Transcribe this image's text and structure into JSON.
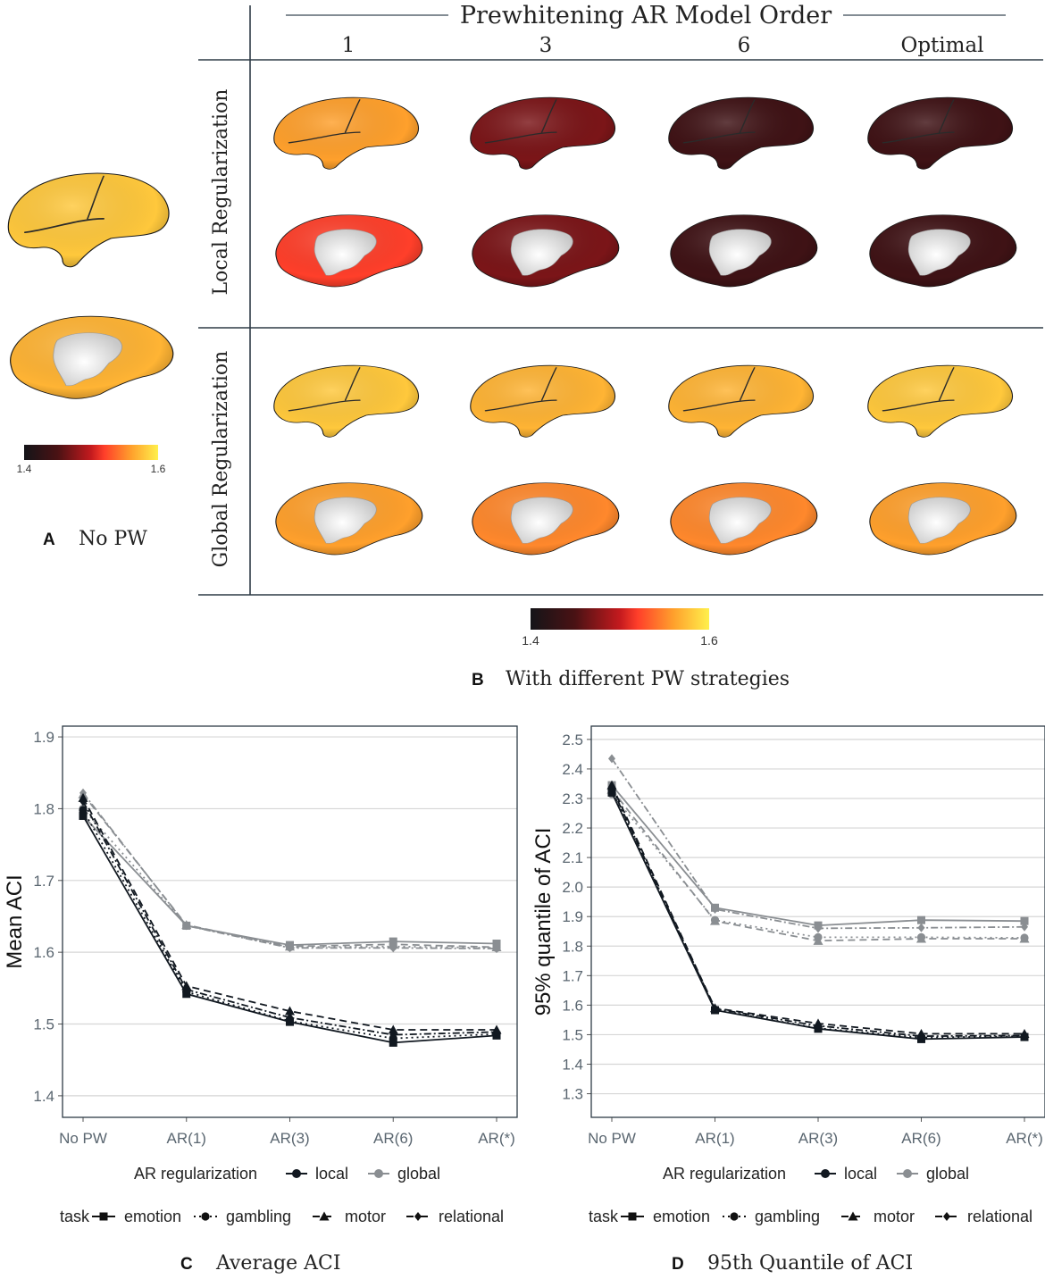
{
  "panel_a": {
    "letter": "A",
    "caption": "No PW",
    "colorbar": {
      "min_label": "1.4",
      "max_label": "1.6",
      "min": 1.4,
      "max": 1.6,
      "colors": [
        "#111111",
        "#5a1010",
        "#c21b1b",
        "#ff3a2a",
        "#ff9a2a",
        "#ffef4a"
      ]
    },
    "lateral_value": 1.58,
    "medial_value": 1.57
  },
  "panel_b": {
    "letter": "B",
    "caption": "With different PW strategies",
    "header_title": "Prewhitening AR Model Order",
    "columns": [
      "1",
      "3",
      "6",
      "Optimal"
    ],
    "rows": [
      "Local Regularization",
      "Global Regularization"
    ],
    "colorbar": {
      "min_label": "1.4",
      "max_label": "1.6",
      "min": 1.4,
      "max": 1.6
    },
    "brain_values": {
      "local": {
        "lateral": [
          1.56,
          1.47,
          1.44,
          1.44
        ],
        "medial": [
          1.52,
          1.47,
          1.44,
          1.44
        ]
      },
      "global": {
        "lateral": [
          1.58,
          1.57,
          1.57,
          1.58
        ],
        "medial": [
          1.56,
          1.55,
          1.55,
          1.56
        ]
      }
    }
  },
  "chart_data": [
    {
      "id": "C",
      "letter": "C",
      "caption": "Average ACI",
      "type": "line",
      "title": "",
      "xlabel": "",
      "ylabel": "Mean ACI",
      "categories": [
        "No PW",
        "AR(1)",
        "AR(3)",
        "AR(6)",
        "AR(*)"
      ],
      "ylim": [
        1.37,
        1.915
      ],
      "yticks": [
        1.4,
        1.5,
        1.6,
        1.7,
        1.8,
        1.9
      ],
      "ytick_labels": [
        "1.4",
        "1.5",
        "1.6",
        "1.7",
        "1.8",
        "1.9"
      ],
      "series": [
        {
          "task": "emotion",
          "reg": "local",
          "values": [
            1.79,
            1.542,
            1.503,
            1.474,
            1.484
          ]
        },
        {
          "task": "gambling",
          "reg": "local",
          "values": [
            1.798,
            1.545,
            1.504,
            1.48,
            1.486
          ]
        },
        {
          "task": "motor",
          "reg": "local",
          "values": [
            1.815,
            1.553,
            1.518,
            1.492,
            1.492
          ]
        },
        {
          "task": "relational",
          "reg": "local",
          "values": [
            1.81,
            1.548,
            1.509,
            1.485,
            1.489
          ]
        },
        {
          "task": "emotion",
          "reg": "global",
          "values": [
            1.79,
            1.637,
            1.61,
            1.615,
            1.612
          ]
        },
        {
          "task": "gambling",
          "reg": "global",
          "values": [
            1.8,
            1.637,
            1.607,
            1.608,
            1.606
          ]
        },
        {
          "task": "motor",
          "reg": "global",
          "values": [
            1.82,
            1.638,
            1.608,
            1.611,
            1.607
          ]
        },
        {
          "task": "relational",
          "reg": "global",
          "values": [
            1.822,
            1.637,
            1.606,
            1.606,
            1.605
          ]
        }
      ],
      "legend_reg": {
        "title": "AR regularization",
        "items": [
          "local",
          "global"
        ]
      },
      "legend_task": {
        "title": "task",
        "items": [
          "emotion",
          "gambling",
          "motor",
          "relational"
        ]
      }
    },
    {
      "id": "D",
      "letter": "D",
      "caption": "95th Quantile of ACI",
      "type": "line",
      "title": "",
      "xlabel": "",
      "ylabel": "95% quantile of ACI",
      "categories": [
        "No PW",
        "AR(1)",
        "AR(3)",
        "AR(6)",
        "AR(*)"
      ],
      "ylim": [
        1.22,
        2.545
      ],
      "yticks": [
        1.3,
        1.4,
        1.5,
        1.6,
        1.7,
        1.8,
        1.9,
        2.0,
        2.1,
        2.2,
        2.3,
        2.4,
        2.5
      ],
      "ytick_labels": [
        "1.3",
        "1.4",
        "1.5",
        "1.6",
        "1.7",
        "1.8",
        "1.9",
        "2.0",
        "2.1",
        "2.2",
        "2.3",
        "2.4",
        "2.5"
      ],
      "series": [
        {
          "task": "emotion",
          "reg": "local",
          "values": [
            2.32,
            1.583,
            1.52,
            1.485,
            1.492
          ]
        },
        {
          "task": "gambling",
          "reg": "local",
          "values": [
            2.33,
            1.585,
            1.522,
            1.49,
            1.495
          ]
        },
        {
          "task": "motor",
          "reg": "local",
          "values": [
            2.345,
            1.59,
            1.538,
            1.503,
            1.503
          ]
        },
        {
          "task": "relational",
          "reg": "local",
          "values": [
            2.335,
            1.588,
            1.53,
            1.495,
            1.497
          ]
        },
        {
          "task": "emotion",
          "reg": "global",
          "values": [
            2.345,
            1.93,
            1.87,
            1.888,
            1.885
          ]
        },
        {
          "task": "gambling",
          "reg": "global",
          "values": [
            2.315,
            1.888,
            1.83,
            1.83,
            1.828
          ]
        },
        {
          "task": "motor",
          "reg": "global",
          "values": [
            2.33,
            1.885,
            1.818,
            1.825,
            1.825
          ]
        },
        {
          "task": "relational",
          "reg": "global",
          "values": [
            2.435,
            1.925,
            1.86,
            1.862,
            1.865
          ]
        }
      ],
      "legend_reg": {
        "title": "AR regularization",
        "items": [
          "local",
          "global"
        ]
      },
      "legend_task": {
        "title": "task",
        "items": [
          "emotion",
          "gambling",
          "motor",
          "relational"
        ]
      }
    }
  ],
  "colors": {
    "local": "#111820",
    "global": "#8a8e92",
    "grid": "#d6d6d6",
    "axis_text": "#5a6670",
    "panel_border": "#2e3b46"
  }
}
